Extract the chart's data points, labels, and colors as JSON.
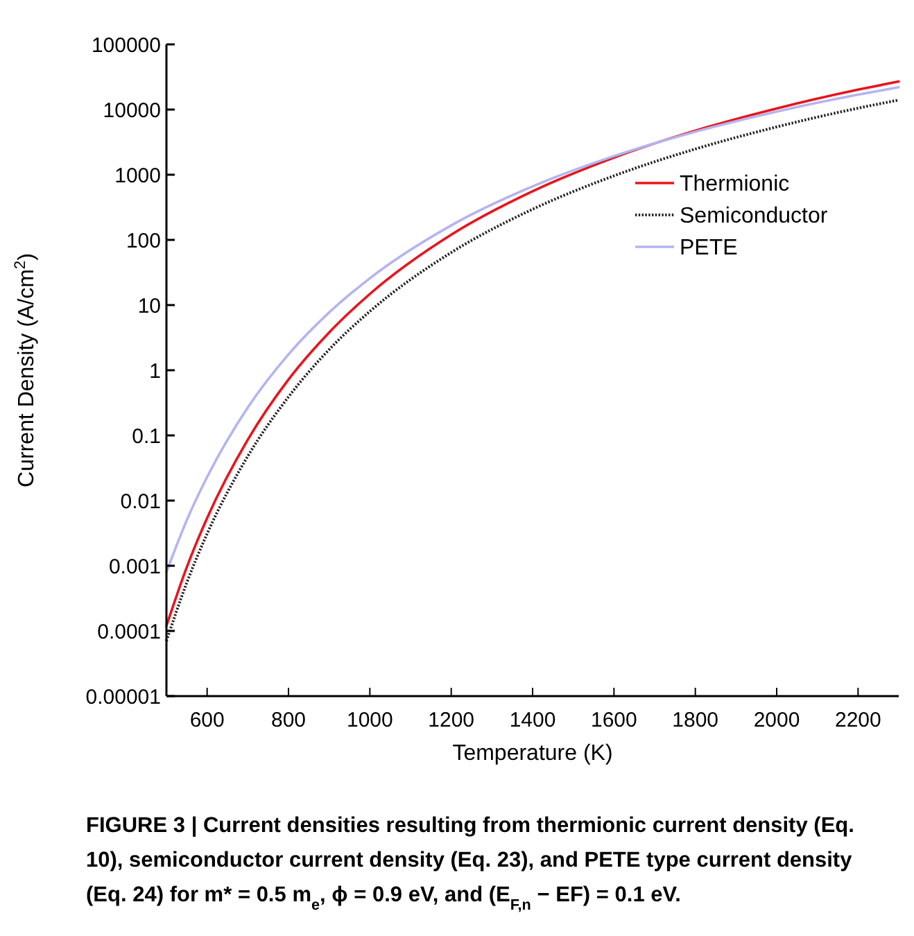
{
  "chart_data": {
    "type": "line",
    "xlabel": "Temperature (K)",
    "ylabel": "Current Density (A/cm$^{2}$)",
    "x": [
      500,
      550,
      600,
      700,
      800,
      900,
      1000,
      1200,
      1400,
      1600,
      1800,
      2000,
      2200,
      2300
    ],
    "series": [
      {
        "name": "Thermionic",
        "color": "#e8141c",
        "line_style": "solid",
        "values": [
          0.00012,
          0.00095,
          0.0054,
          0.086,
          0.72,
          3.8,
          14.8,
          120,
          557,
          1830,
          4750,
          10400,
          20200,
          27000
        ]
      },
      {
        "name": "Semiconductor",
        "color": "#222222",
        "line_style": "dotted",
        "values": [
          7e-05,
          0.00055,
          0.0031,
          0.048,
          0.39,
          2.08,
          8.0,
          64,
          295,
          962,
          2480,
          5420,
          10500,
          14000
        ]
      },
      {
        "name": "PETE",
        "color": "#b4b4f0",
        "line_style": "solid",
        "values": [
          0.0008,
          0.005,
          0.023,
          0.268,
          1.75,
          7.7,
          25.8,
          167,
          662,
          1930,
          4570,
          9300,
          16900,
          22000
        ]
      }
    ],
    "log": "y",
    "xlim": [
      500,
      2300
    ],
    "xticks": [
      600,
      800,
      1000,
      1200,
      1400,
      1600,
      1800,
      2000,
      2200
    ],
    "ylim": [
      1e-05,
      100000
    ],
    "yticks": [
      {
        "value": 1e-05,
        "label": "0.00001"
      },
      0.0001,
      0.001,
      0.01,
      0.1,
      1,
      10,
      100,
      1000,
      10000,
      100000
    ],
    "grid": false,
    "legend": "right",
    "marker": "none",
    "annotations": [
      "FIGURE 3 | Current densities resulting from thermionic current density (Eq. 10), semiconductor current density (Eq. 23), and PETE type current density (Eq. 24) for m* = 0.5 m$_{e}$, ϕ = 0.9 eV, and (E$_{F,n}$ − EF) = 0.1 eV."
    ]
  }
}
